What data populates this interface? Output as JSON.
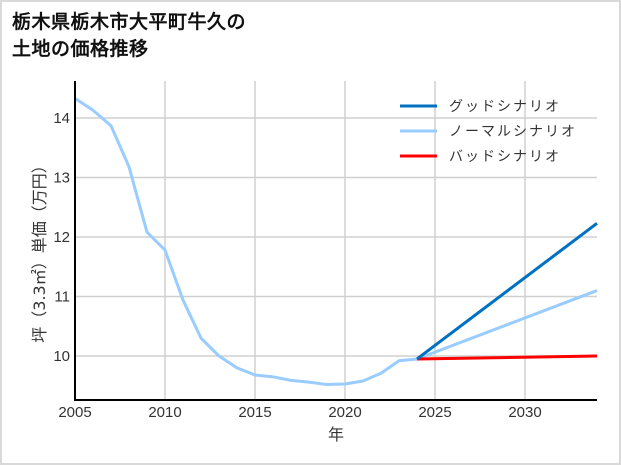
{
  "title": "栃木県栃木市大平町牛久の\n土地の価格推移",
  "chart_data": {
    "type": "line",
    "title": "栃木県栃木市大平町牛久の土地の価格推移",
    "xlabel": "年",
    "ylabel": "坪（3.3㎡）単価（万円）",
    "xlim": [
      2005,
      2034
    ],
    "ylim": [
      9.3,
      14.6
    ],
    "x_ticks": [
      2005,
      2010,
      2015,
      2020,
      2025,
      2030
    ],
    "y_ticks": [
      10,
      11,
      12,
      13,
      14
    ],
    "grid": true,
    "legend_position": "upper right",
    "series": [
      {
        "name": "ノーマルシナリオ",
        "color": "#99ccff",
        "x": [
          2005,
          2006,
          2007,
          2008,
          2009,
          2010,
          2011,
          2012,
          2013,
          2014,
          2015,
          2016,
          2017,
          2018,
          2019,
          2020,
          2021,
          2022,
          2023,
          2024
        ],
        "values": [
          14.33,
          14.13,
          13.87,
          13.18,
          12.08,
          11.78,
          10.94,
          10.3,
          10.0,
          9.8,
          9.68,
          9.65,
          9.59,
          9.56,
          9.52,
          9.53,
          9.58,
          9.71,
          9.92,
          9.95
        ]
      },
      {
        "name": "グッドシナリオ",
        "color": "#0070c0",
        "x": [
          2024,
          2034
        ],
        "values": [
          9.95,
          12.23
        ]
      },
      {
        "name": "ノーマルシナリオ",
        "color": "#99ccff",
        "x": [
          2024,
          2034
        ],
        "values": [
          9.95,
          11.1
        ]
      },
      {
        "name": "バッドシナリオ",
        "color": "#ff0000",
        "x": [
          2024,
          2034
        ],
        "values": [
          9.95,
          10.0
        ]
      }
    ]
  },
  "legend": [
    {
      "label": "グッドシナリオ",
      "color": "#0070c0"
    },
    {
      "label": "ノーマルシナリオ",
      "color": "#99ccff"
    },
    {
      "label": "バッドシナリオ",
      "color": "#ff0000"
    }
  ]
}
